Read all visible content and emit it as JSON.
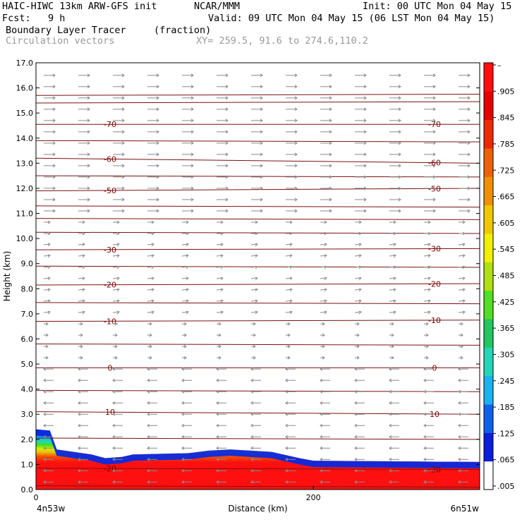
{
  "header": {
    "model": "HAIC-HIWC 13km ARW-GFS init",
    "org": "NCAR/MMM",
    "init": "Init: 00 UTC Mon 04 May 15",
    "fcst": "Fcst:   9 h",
    "valid": "Valid: 09 UTC Mon 04 May 15 (06 LST Mon 04 May 15)",
    "field": "Boundary Layer Tracer",
    "units": "(fraction)",
    "vectors": "Circulation vectors",
    "xy": "XY= 259.5, 91.6 to 274.6,110.2"
  },
  "colors": {
    "contour": "#7a1010",
    "vector": "#8a8a8a",
    "colorbar_stops": [
      "#ffffff",
      "#0a1ee0",
      "#1060f0",
      "#16b4f0",
      "#20d8b8",
      "#20c860",
      "#50e020",
      "#b0e010",
      "#f0f000",
      "#f0c800",
      "#f09000",
      "#f06000",
      "#f02800",
      "#e80000",
      "#ff1010"
    ]
  },
  "chart_data": {
    "type": "heatmap",
    "title": "Boundary Layer Tracer",
    "units": "(fraction)",
    "xlabel": "Distance (km)",
    "ylabel": "Height (km)",
    "xlim": [
      0,
      320
    ],
    "ylim": [
      0,
      17
    ],
    "x_ticks": [
      {
        "value": 0,
        "label": "0"
      },
      {
        "value": 200,
        "label": "200"
      }
    ],
    "x_endpoints": {
      "left": "4n53w",
      "right": "6n51w"
    },
    "y_ticks": [
      "0.0",
      "1.0",
      "2.0",
      "3.0",
      "4.0",
      "5.0",
      "6.0",
      "7.0",
      "8.0",
      "9.0",
      "10.0",
      "11.0",
      "12.0",
      "13.0",
      "14.0",
      "15.0",
      "16.0",
      "17.0"
    ],
    "colorbar_labels": [
      "–",
      ".905",
      ".845",
      ".785",
      ".725",
      ".665",
      ".605",
      ".545",
      ".485",
      ".425",
      ".365",
      ".305",
      ".245",
      ".185",
      ".125",
      ".065",
      ".005"
    ],
    "boundary_layer_top_km": [
      {
        "x": 0,
        "y": 2.4
      },
      {
        "x": 10,
        "y": 2.35
      },
      {
        "x": 15,
        "y": 1.6
      },
      {
        "x": 40,
        "y": 1.4
      },
      {
        "x": 50,
        "y": 1.25
      },
      {
        "x": 62,
        "y": 1.3
      },
      {
        "x": 70,
        "y": 1.4
      },
      {
        "x": 110,
        "y": 1.45
      },
      {
        "x": 125,
        "y": 1.55
      },
      {
        "x": 140,
        "y": 1.6
      },
      {
        "x": 170,
        "y": 1.5
      },
      {
        "x": 190,
        "y": 1.25
      },
      {
        "x": 200,
        "y": 1.15
      },
      {
        "x": 320,
        "y": 1.1
      }
    ],
    "contour_series": [
      {
        "name": "-20",
        "levels_km": [
          0.85,
          0.8
        ]
      },
      {
        "name": "10",
        "levels_km": [
          3.1,
          3.0
        ]
      },
      {
        "name": "0",
        "levels_km": [
          4.85,
          4.85
        ]
      },
      {
        "name": "-10",
        "levels_km": [
          6.7,
          6.75
        ]
      },
      {
        "name": "-20",
        "levels_km": [
          8.15,
          8.2
        ]
      },
      {
        "name": "-30",
        "levels_km": [
          9.55,
          9.6
        ]
      },
      {
        "name": "-50",
        "levels_km": [
          11.9,
          12.0
        ]
      },
      {
        "name": "-60",
        "levels_km": [
          13.2,
          13.0
        ]
      },
      {
        "name": "-70",
        "levels_km": [
          14.55,
          14.55
        ]
      }
    ],
    "extra_contours_km": [
      0.15,
      2.05,
      3.95,
      5.8,
      7.45,
      8.9,
      10.25,
      10.8,
      11.3,
      12.5,
      13.9,
      15.4,
      15.7
    ]
  }
}
